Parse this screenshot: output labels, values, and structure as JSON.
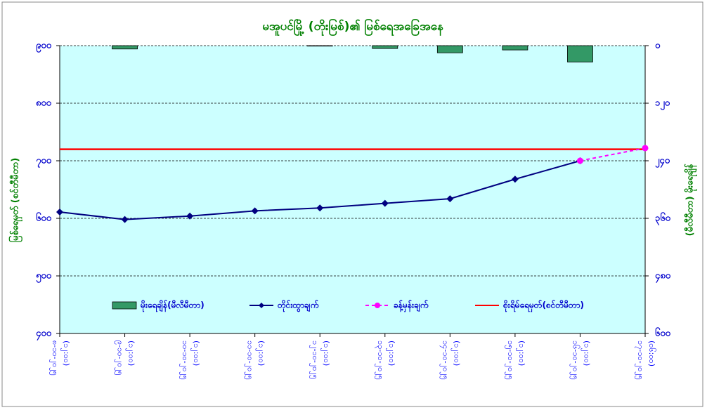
{
  "chart_data": {
    "type": "combo",
    "title": "မအူပင်မြို့ (တိုးမြစ်)၏ မြစ်ရေအခြေအနေ",
    "y_label": "မြစ်ရေမှတ် (စင်တီမီတာ)",
    "y2_label": "(မီလီမီတာ) မိုးရေချိန်",
    "categories": [
      "၈-၁၀-၂၀၂၅",
      "၉-၁၀-၂၀၂၅",
      "၁၀-၁၀-၂၀၂၅",
      "၁၁-၁၀-၂၀၂၅",
      "၁၂-၁၀-၂၀၂၅",
      "၁၃-၁၀-၂၀၂၅",
      "၁၄-၁၀-၂၀၂၅",
      "၁၅-၁၀-၂၀၂၅",
      "၁၆-၁၀-၂၀၂၅",
      "၁၇-၁၀-၂၀၂၅"
    ],
    "category_times": [
      "(၁၂:၀၀)",
      "(၁၂:၀၀)",
      "(၁၂:၀၀)",
      "(၁၂:၀၀)",
      "(၁၂:၀၀)",
      "(၁၂:၀၀)",
      "(၁၂:၀၀)",
      "(၁၂:၀၀)",
      "(၁၂:၀၀)",
      "(၀၆:၀၀)"
    ],
    "ylim": [
      400,
      900
    ],
    "yticks": [
      {
        "value": 400,
        "label": "၄၀၀"
      },
      {
        "value": 500,
        "label": "၅၀၀"
      },
      {
        "value": 600,
        "label": "၆၀၀"
      },
      {
        "value": 700,
        "label": "၇၀၀"
      },
      {
        "value": 800,
        "label": "၈၀၀"
      },
      {
        "value": 900,
        "label": "၉၀၀"
      }
    ],
    "y2lim": [
      600,
      0
    ],
    "y2ticks": [
      {
        "value": 600,
        "label": "၆၀၀"
      },
      {
        "value": 480,
        "label": "၄၈၀"
      },
      {
        "value": 360,
        "label": "၃၆၀"
      },
      {
        "value": 240,
        "label": "၂၄၀"
      },
      {
        "value": 120,
        "label": "၁၂၀"
      },
      {
        "value": 0,
        "label": "၀"
      }
    ],
    "grid": true,
    "series": [
      {
        "name": "မိုးရေချိန်(မီလီမီတာ)",
        "type": "bar",
        "axis": "y2",
        "color": "#339966",
        "values": [
          null,
          7,
          null,
          null,
          1,
          6,
          15,
          9,
          34,
          null
        ]
      },
      {
        "name": "တိုင်းထွာချက်",
        "type": "line",
        "color": "#000080",
        "values": [
          611,
          598,
          604,
          613,
          618,
          626,
          634,
          668,
          700,
          null
        ]
      },
      {
        "name": "ခန့်မှန်းချက်",
        "type": "line",
        "dashed": true,
        "color": "#ff00ff",
        "values": [
          null,
          null,
          null,
          null,
          null,
          null,
          null,
          null,
          700,
          722
        ]
      },
      {
        "name": "စိုးရိမ်ရေမှတ်(စင်တီမီတာ)",
        "type": "hline",
        "color": "#ff0000",
        "value": 720
      }
    ]
  }
}
